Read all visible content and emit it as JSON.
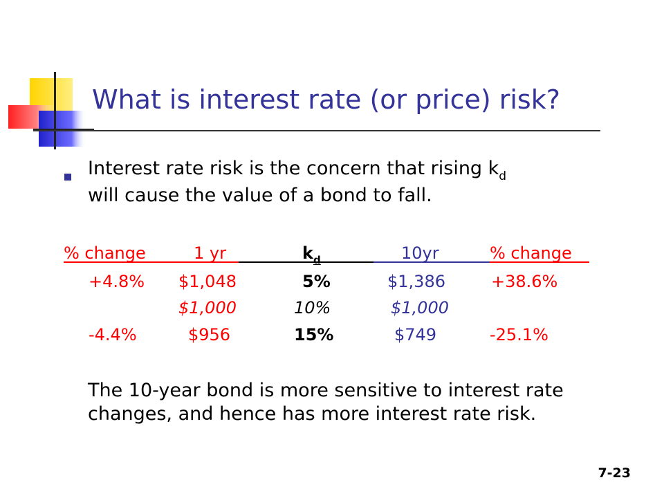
{
  "title": "What is interest rate (or price) risk?",
  "bullet": {
    "text_before_sub": "Interest rate risk is the concern that rising k",
    "subscript": "d",
    "text_after_sub": "will cause the value of a bond to fall."
  },
  "table": {
    "headers": {
      "pct_change_left": "% change",
      "one_yr": "1 yr",
      "kd_main": "k",
      "kd_sub": "d",
      "ten_yr": "10yr",
      "pct_change_right": "% change"
    },
    "rows": [
      {
        "pct_left": "+4.8%",
        "one_yr": "$1,048",
        "kd": "5%",
        "ten_yr": "$1,386",
        "pct_right": "+38.6%"
      },
      {
        "pct_left": "",
        "one_yr": "$1,000",
        "kd": "10%",
        "ten_yr": "$1,000",
        "pct_right": ""
      },
      {
        "pct_left": "-4.4%",
        "one_yr": "$956",
        "kd": "15%",
        "ten_yr": "$749",
        "pct_right": "-25.1%"
      }
    ]
  },
  "paragraph": "The 10-year bond is more sensitive to interest rate changes, and hence has more interest rate risk.",
  "slide_number": "7-23",
  "colors": {
    "title": "#333399",
    "red": "#ff0000",
    "blue": "#333399"
  }
}
